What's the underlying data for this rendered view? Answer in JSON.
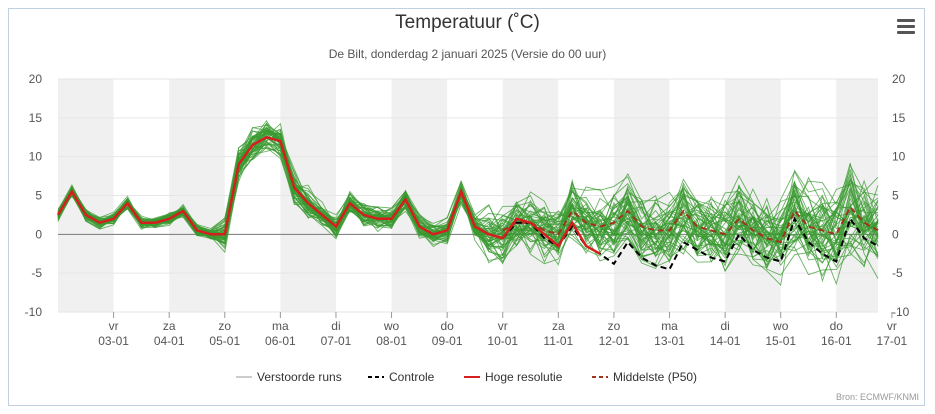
{
  "title": "Temperatuur (˚C)",
  "subtitle": "De Bilt, donderdag 2 januari 2025 (Versie do 00 uur)",
  "credit": "Bron: ECMWF/KNMI",
  "menu_icon": "hamburger-menu-icon",
  "chart_data": {
    "type": "line",
    "title": "Temperatuur (˚C)",
    "ylim": [
      -10,
      20
    ],
    "yticks": [
      -10,
      -5,
      0,
      5,
      10,
      15,
      20
    ],
    "x_range_hours": [
      -12,
      342
    ],
    "x_labels": [
      {
        "day": "vr",
        "date": "03-01"
      },
      {
        "day": "za",
        "date": "04-01"
      },
      {
        "day": "zo",
        "date": "05-01"
      },
      {
        "day": "ma",
        "date": "06-01"
      },
      {
        "day": "di",
        "date": "07-01"
      },
      {
        "day": "wo",
        "date": "08-01"
      },
      {
        "day": "do",
        "date": "09-01"
      },
      {
        "day": "vr",
        "date": "10-01"
      },
      {
        "day": "za",
        "date": "11-01"
      },
      {
        "day": "zo",
        "date": "12-01"
      },
      {
        "day": "ma",
        "date": "13-01"
      },
      {
        "day": "di",
        "date": "14-01"
      },
      {
        "day": "wo",
        "date": "15-01"
      },
      {
        "day": "do",
        "date": "16-01"
      },
      {
        "day": "vr",
        "date": "17-01"
      }
    ],
    "ensemble_members": 50,
    "hoge_resolutie": {
      "hours": [
        -12,
        -6,
        0,
        6,
        12,
        18,
        24,
        30,
        36,
        42,
        48,
        54,
        60,
        66,
        72,
        78,
        84,
        90,
        96,
        102,
        108,
        114,
        120,
        126,
        132,
        138,
        144,
        150,
        156,
        162,
        168,
        174,
        180,
        186,
        192,
        198,
        204,
        210,
        216,
        222,
        228,
        234,
        240
      ],
      "values": [
        2.5,
        5.5,
        2.5,
        1.5,
        2.0,
        4.0,
        1.5,
        1.5,
        2.0,
        3.0,
        0.5,
        0.0,
        0.0,
        9.0,
        11.5,
        12.5,
        12.0,
        6.0,
        4.0,
        2.5,
        1.0,
        4.0,
        2.5,
        2.0,
        2.0,
        4.5,
        1.0,
        0.0,
        0.5,
        5.5,
        1.0,
        0.0,
        -0.5,
        2.0,
        1.5,
        0.0,
        -1.5,
        1.5,
        -1.5,
        -2.5,
        null,
        null,
        null
      ]
    },
    "controle": {
      "hours": [
        180,
        186,
        192,
        198,
        204,
        210,
        216,
        222,
        228,
        234,
        240,
        246,
        252,
        258,
        264,
        270,
        276,
        282,
        288,
        294,
        300,
        306,
        312,
        318,
        324,
        330,
        336,
        342
      ],
      "values": [
        -0.5,
        1.5,
        1.5,
        -0.5,
        -1.5,
        1.0,
        -1.5,
        -2.5,
        -3.8,
        -1.0,
        -3.0,
        -4.0,
        -4.5,
        -1.0,
        -2.0,
        -3.0,
        -3.5,
        0.0,
        -2.0,
        -3.0,
        -3.5,
        2.0,
        -1.0,
        -2.5,
        -3.5,
        2.0,
        -0.5,
        -1.5
      ]
    },
    "middelste_p50": {
      "hours": [
        180,
        186,
        192,
        198,
        204,
        210,
        216,
        222,
        228,
        234,
        240,
        246,
        252,
        258,
        264,
        270,
        276,
        282,
        288,
        294,
        300,
        306,
        312,
        318,
        324,
        330,
        336,
        342
      ],
      "values": [
        0.5,
        1.5,
        1.5,
        0.5,
        0.0,
        3.0,
        1.5,
        1.0,
        1.5,
        3.0,
        1.0,
        0.5,
        0.5,
        3.0,
        1.0,
        0.5,
        0.0,
        2.0,
        0.5,
        -0.5,
        -1.0,
        3.0,
        1.0,
        0.5,
        0.0,
        3.5,
        1.5,
        0.5
      ]
    },
    "legend": [
      {
        "label": "Verstoorde runs",
        "color": "#cccccc",
        "style": "solid"
      },
      {
        "label": "Controle",
        "color": "#000000",
        "style": "dashed"
      },
      {
        "label": "Hoge resolutie",
        "color": "#d51f1f",
        "style": "solid"
      },
      {
        "label": "Middelste (P50)",
        "color": "#a0351e",
        "style": "dashed"
      }
    ],
    "colors": {
      "ensemble": "#3a9a30",
      "weekend_band": "#f0f0f0",
      "grid": "#e6e6e6",
      "zero_line": "#777777"
    }
  }
}
